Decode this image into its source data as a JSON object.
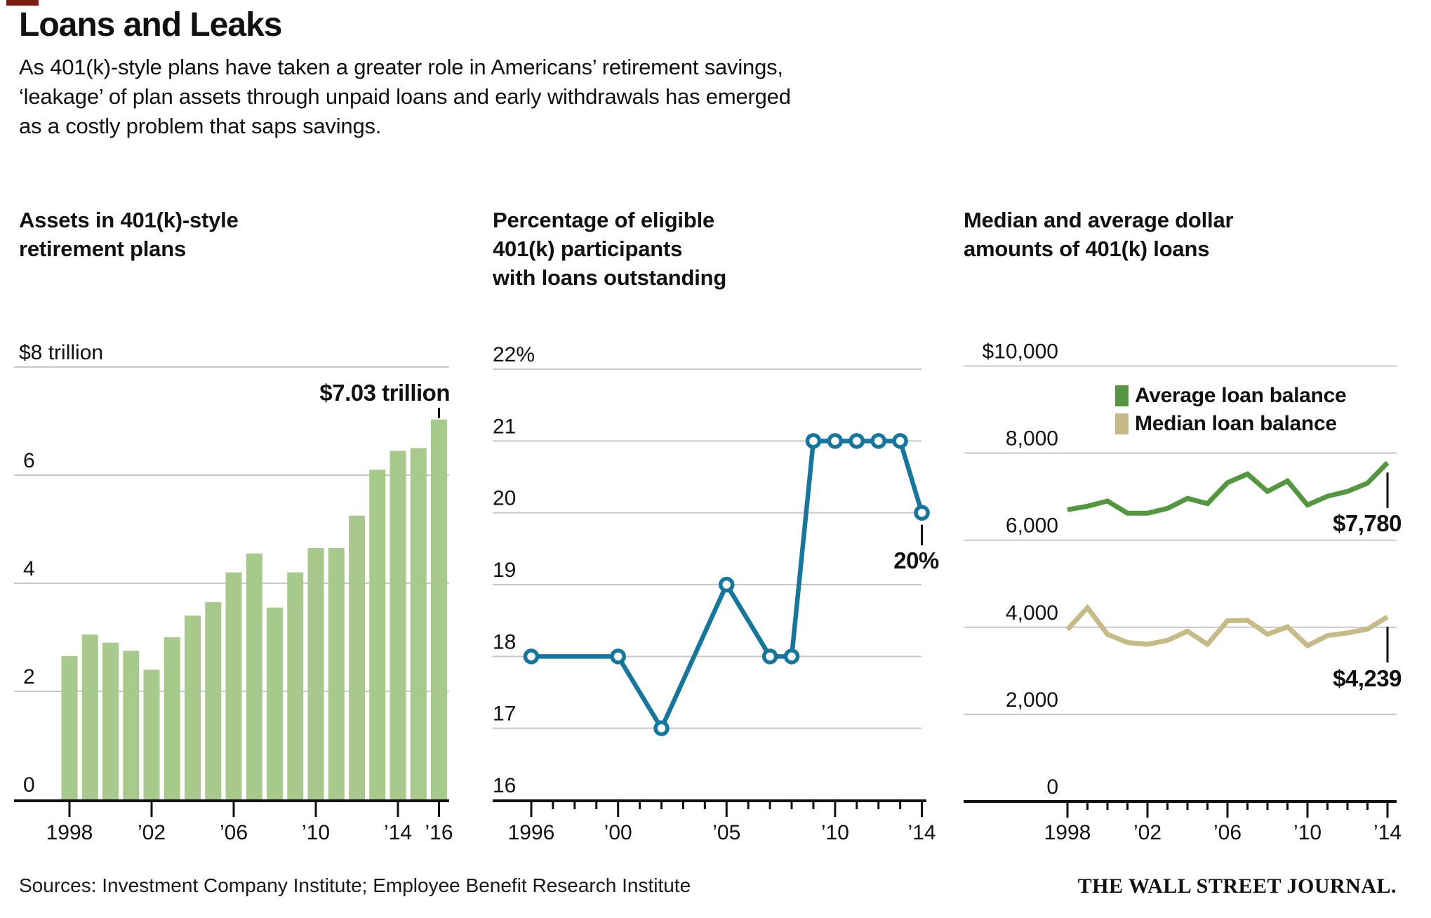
{
  "header": {
    "title": "Loans and Leaks",
    "subtitle_lines": [
      "As 401(k)-style plans have taken a greater role in Americans’ retirement savings,",
      "‘leakage’ of plan assets through unpaid loans and early withdrawals has emerged",
      "as a costly problem that saps savings."
    ]
  },
  "colors": {
    "bar_green": "#a7c98b",
    "line_teal": "#16779e",
    "avg_green": "#539840",
    "median_tan": "#c6ba86",
    "grid": "#c9c9c9",
    "axis": "#111111",
    "text": "#111111"
  },
  "chart_data": [
    {
      "id": "assets",
      "type": "bar",
      "title_lines": [
        "Assets in 401(k)-style",
        "retirement plans"
      ],
      "categories": [
        1998,
        1999,
        2000,
        2001,
        2002,
        2003,
        2004,
        2005,
        2006,
        2007,
        2008,
        2009,
        2010,
        2011,
        2012,
        2013,
        2014,
        2015,
        2016
      ],
      "values": [
        2.65,
        3.05,
        2.9,
        2.75,
        2.4,
        3.0,
        3.4,
        3.65,
        4.2,
        4.55,
        3.55,
        4.2,
        4.65,
        4.65,
        5.25,
        6.1,
        6.45,
        6.5,
        7.03
      ],
      "unit": "trillion US dollars",
      "ylim": [
        0,
        8
      ],
      "yticks": [
        {
          "label": "$8 trillion",
          "value": 8
        },
        {
          "label": "6",
          "value": 6
        },
        {
          "label": "4",
          "value": 4
        },
        {
          "label": "2",
          "value": 2
        },
        {
          "label": "0",
          "value": 0
        }
      ],
      "xticks": [
        {
          "label": "1998",
          "year": 1998
        },
        {
          "label": "’02",
          "year": 2002
        },
        {
          "label": "’06",
          "year": 2006
        },
        {
          "label": "’10",
          "year": 2010
        },
        {
          "label": "’14",
          "year": 2014
        },
        {
          "label": "’16",
          "year": 2016
        }
      ],
      "annotation": {
        "text": "$7.03 trillion",
        "year": 2016,
        "value": 7.03
      }
    },
    {
      "id": "participation",
      "type": "line",
      "title_lines": [
        "Percentage of eligible",
        "401(k) participants",
        "with loans outstanding"
      ],
      "x": [
        1996,
        2000,
        2002,
        2005,
        2007,
        2008,
        2009,
        2010,
        2011,
        2012,
        2013,
        2014
      ],
      "values": [
        18,
        18,
        17,
        19,
        18,
        18,
        21,
        21,
        21,
        21,
        21,
        20
      ],
      "unit": "percent",
      "ylim": [
        16,
        22
      ],
      "yticks": [
        {
          "label": "22%",
          "value": 22
        },
        {
          "label": "21",
          "value": 21
        },
        {
          "label": "20",
          "value": 20
        },
        {
          "label": "19",
          "value": 19
        },
        {
          "label": "18",
          "value": 18
        },
        {
          "label": "17",
          "value": 17
        },
        {
          "label": "16",
          "value": 16
        }
      ],
      "xticks": [
        {
          "label": "1996",
          "year": 1996
        },
        {
          "label": "’00",
          "year": 2000
        },
        {
          "label": "’05",
          "year": 2005
        },
        {
          "label": "’10",
          "year": 2010
        },
        {
          "label": "’14",
          "year": 2014
        }
      ],
      "minor_tick_years": [
        1996,
        1997,
        1998,
        1999,
        2000,
        2001,
        2002,
        2003,
        2004,
        2005,
        2006,
        2007,
        2008,
        2009,
        2010,
        2011,
        2012,
        2013,
        2014
      ],
      "annotation": {
        "text": "20%",
        "year": 2014,
        "value": 20
      }
    },
    {
      "id": "loan-amounts",
      "type": "line",
      "title_lines": [
        "Median and average dollar",
        "amounts of 401(k) loans"
      ],
      "x": [
        1998,
        1999,
        2000,
        2001,
        2002,
        2003,
        2004,
        2005,
        2006,
        2007,
        2008,
        2009,
        2010,
        2011,
        2012,
        2013,
        2014
      ],
      "series": [
        {
          "name": "Average loan balance",
          "color_key": "avg_green",
          "values": [
            6700,
            6780,
            6900,
            6620,
            6620,
            6730,
            6960,
            6840,
            7320,
            7520,
            7120,
            7360,
            6810,
            7010,
            7120,
            7310,
            7780
          ]
        },
        {
          "name": "Median loan balance",
          "color_key": "median_tan",
          "values": [
            3950,
            4450,
            3840,
            3650,
            3610,
            3700,
            3910,
            3610,
            4150,
            4160,
            3840,
            4010,
            3580,
            3810,
            3870,
            3960,
            4239
          ]
        }
      ],
      "unit": "US dollars",
      "ylim": [
        0,
        10000
      ],
      "yticks": [
        {
          "label": "$10,000",
          "value": 10000
        },
        {
          "label": "8,000",
          "value": 8000
        },
        {
          "label": "6,000",
          "value": 6000
        },
        {
          "label": "4,000",
          "value": 4000
        },
        {
          "label": "2,000",
          "value": 2000
        },
        {
          "label": "0",
          "value": 0
        }
      ],
      "xticks": [
        {
          "label": "1998",
          "year": 1998
        },
        {
          "label": "’02",
          "year": 2002
        },
        {
          "label": "’06",
          "year": 2006
        },
        {
          "label": "’10",
          "year": 2010
        },
        {
          "label": "’14",
          "year": 2014
        }
      ],
      "minor_tick_years": [
        1998,
        1999,
        2000,
        2001,
        2002,
        2003,
        2004,
        2005,
        2006,
        2007,
        2008,
        2009,
        2010,
        2011,
        2012,
        2013,
        2014
      ],
      "annotations": [
        {
          "text": "$7,780",
          "series": "Average loan balance",
          "year": 2014,
          "value": 7780
        },
        {
          "text": "$4,239",
          "series": "Median loan balance",
          "year": 2014,
          "value": 4239
        }
      ]
    }
  ],
  "source_line": "Sources: Investment Company Institute; Employee Benefit Research Institute",
  "brand": "THE WALL STREET JOURNAL."
}
